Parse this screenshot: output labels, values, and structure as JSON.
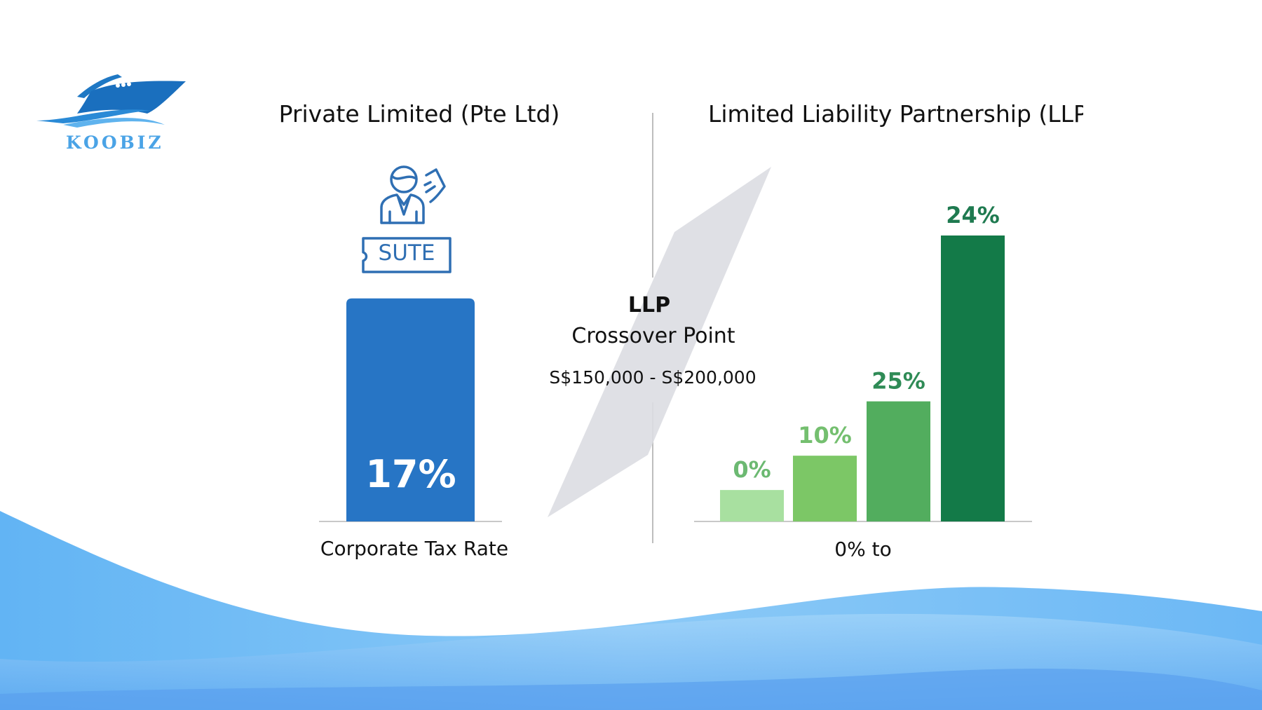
{
  "logo": {
    "text": "KOOBIZ",
    "icon": "ship-icon",
    "color": "#2a7cc7"
  },
  "left_panel": {
    "title": "Private Limited (Pte Ltd)",
    "icon": "person-with-ticket-icon",
    "badge_text": "SUTE",
    "caption": "Corporate Tax Rate"
  },
  "right_panel": {
    "title": "Limited Liability Partnership (LLP",
    "caption": "0% to"
  },
  "crossover": {
    "title_line1": "LLP",
    "title_line2": "Crossover Point",
    "range": "S$150,000 - S$200,000"
  },
  "chart_data": [
    {
      "type": "bar",
      "title": "Private Limited (Pte Ltd)",
      "xlabel": "Corporate Tax Rate",
      "categories": [
        ""
      ],
      "values": [
        17
      ],
      "labels": [
        "17%"
      ],
      "relative_bar_height": [
        0.78
      ],
      "colors": [
        "#2775c5"
      ],
      "label_color": "#ffffff"
    },
    {
      "type": "bar",
      "title": "Limited Liability Partnership (LLP",
      "xlabel": "0% to",
      "categories": [
        "",
        "",
        "",
        ""
      ],
      "values": [
        0,
        10,
        25,
        24
      ],
      "labels": [
        "0%",
        "10%",
        "25%",
        "24%"
      ],
      "relative_bar_height": [
        0.11,
        0.23,
        0.42,
        1.0
      ],
      "colors": [
        "#a8e0a0",
        "#7cc766",
        "#52ad5e",
        "#137a48"
      ],
      "label_colors": [
        "#6cb972",
        "#74bf6f",
        "#2f8b56",
        "#1f7a50"
      ]
    }
  ]
}
